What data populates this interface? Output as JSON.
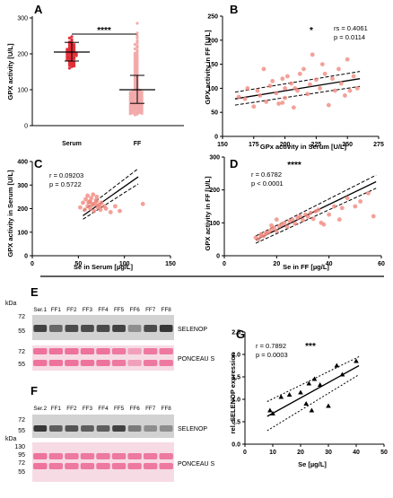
{
  "panels": {
    "A": {
      "letter": "A",
      "ylabel": "GPX activity [U/L]",
      "categories": [
        "Serum",
        "FF"
      ],
      "yticks": [
        "0",
        "100",
        "200",
        "300"
      ],
      "ylim": [
        0,
        300
      ],
      "significance": "****",
      "colors": {
        "serum": "#e0202a",
        "ff": "#f2a3a3"
      }
    },
    "B": {
      "letter": "B",
      "ylabel": "GPX activity in FF [U/L]",
      "xlabel": "GPx activity in Serum [U/L]",
      "xticks": [
        "150",
        "175",
        "200",
        "225",
        "250",
        "275"
      ],
      "yticks": [
        "0",
        "50",
        "100",
        "150",
        "200",
        "250"
      ],
      "xlim": [
        150,
        275
      ],
      "ylim": [
        0,
        250
      ],
      "stat1": "rs = 0.4061",
      "stat2": "p = 0.0114",
      "significance": "*"
    },
    "C": {
      "letter": "C",
      "ylabel": "GPX activity in Serum [U/L]",
      "xlabel": "Se in Serum [µg/L]",
      "xticks": [
        "0",
        "50",
        "100",
        "150"
      ],
      "yticks": [
        "0",
        "100",
        "200",
        "300",
        "400"
      ],
      "xlim": [
        0,
        150
      ],
      "ylim": [
        0,
        400
      ],
      "stat1": "r = 0.09203",
      "stat2": "p = 0.5722"
    },
    "D": {
      "letter": "D",
      "ylabel": "GPX activity in FF [U/L]",
      "xlabel": "Se in FF [µg/L]",
      "xticks": [
        "0",
        "20",
        "40",
        "60"
      ],
      "yticks": [
        "0",
        "100",
        "200",
        "300"
      ],
      "xlim": [
        0,
        60
      ],
      "ylim": [
        0,
        300
      ],
      "stat1": "r = 0.6782",
      "stat2": "p < 0.0001",
      "significance": "****"
    },
    "E": {
      "letter": "E",
      "kda": "kDa",
      "lanes": [
        "Ser.1",
        "FF1",
        "FF2",
        "FF3",
        "FF4",
        "FF5",
        "FF6",
        "FF7",
        "FF8"
      ],
      "upper_markers": [
        "72",
        "55"
      ],
      "lower_markers": [
        "72",
        "55"
      ],
      "label_top": "SELENOP",
      "label_bottom": "PONCEAU S"
    },
    "F": {
      "letter": "F",
      "kda": "kDa",
      "lanes": [
        "Ser.2",
        "FF1",
        "FF2",
        "FF3",
        "FF4",
        "FF5",
        "FF6",
        "FF7",
        "FF8"
      ],
      "upper_markers": [
        "72",
        "55"
      ],
      "lower_markers": [
        "130",
        "95",
        "72",
        "55"
      ],
      "label_top": "SELENOP",
      "label_bottom": "PONCEAU S"
    },
    "G": {
      "letter": "G",
      "ylabel": "rel. SELENOP expression",
      "xlabel": "Se [µg/L]",
      "xticks": [
        "0",
        "10",
        "20",
        "30",
        "40",
        "50"
      ],
      "yticks": [
        "0.0",
        "0.5",
        "1.0",
        "1.5",
        "2.0",
        "2.5"
      ],
      "xlim": [
        0,
        50
      ],
      "ylim": [
        0,
        2.5
      ],
      "stat1": "r = 0.7892",
      "stat2": "p = 0.0003",
      "significance": "***"
    }
  },
  "chart_data": [
    {
      "panel": "A",
      "type": "scatter",
      "categories": [
        "Serum",
        "FF"
      ],
      "series": [
        {
          "values": [
            248,
            244,
            240,
            236,
            233,
            230,
            228,
            226,
            224,
            222,
            220,
            218,
            216,
            215,
            213,
            212,
            210,
            209,
            208,
            206,
            205,
            204,
            202,
            201,
            200,
            199,
            198,
            196,
            195,
            194,
            192,
            191,
            190,
            188,
            187,
            186,
            184,
            182,
            180,
            178,
            176,
            174,
            172,
            170,
            168,
            166,
            164,
            160
          ]
        },
        {
          "values": [
            285,
            258,
            250,
            244,
            236,
            230,
            226,
            222,
            218,
            214,
            210,
            206,
            202,
            199,
            196,
            193,
            190,
            187,
            184,
            181,
            178,
            175,
            172,
            169,
            166,
            163,
            160,
            157,
            154,
            151,
            148,
            145,
            142,
            139,
            136,
            133,
            130,
            127,
            124,
            121,
            118,
            115,
            112,
            109,
            106,
            103,
            100,
            99,
            98,
            97,
            96,
            95,
            94,
            93,
            92,
            91,
            90,
            89,
            88,
            87,
            86,
            85,
            84,
            83,
            82,
            81,
            80,
            79,
            78,
            77,
            76,
            75,
            74,
            73,
            72,
            71,
            70,
            69,
            68,
            67,
            66,
            65,
            64,
            63,
            62,
            61,
            60,
            59,
            58,
            57,
            56,
            55,
            54,
            53,
            52,
            51,
            50,
            49,
            48,
            47,
            46,
            45,
            44,
            43,
            42,
            41,
            40,
            39,
            38,
            37,
            36,
            35,
            34,
            33,
            32,
            30
          ]
        }
      ],
      "summary": [
        {
          "mean": 205,
          "sd_low": 180,
          "sd_high": 232
        },
        {
          "mean": 100,
          "sd_low": 62,
          "sd_high": 140
        }
      ],
      "ylim": [
        0,
        300
      ]
    },
    {
      "panel": "B",
      "type": "scatter",
      "x": [
        163,
        168,
        170,
        175,
        178,
        180,
        183,
        185,
        188,
        190,
        193,
        195,
        198,
        200,
        200,
        202,
        205,
        207,
        210,
        212,
        215,
        218,
        220,
        222,
        225,
        228,
        230,
        232,
        235,
        238,
        240,
        243,
        245,
        248,
        250,
        252,
        255,
        258,
        198,
        208
      ],
      "y": [
        82,
        78,
        100,
        62,
        95,
        85,
        140,
        72,
        105,
        115,
        90,
        68,
        120,
        100,
        80,
        125,
        110,
        60,
        95,
        130,
        140,
        88,
        108,
        170,
        118,
        100,
        150,
        130,
        65,
        120,
        95,
        140,
        110,
        85,
        160,
        95,
        125,
        100,
        70,
        100
      ],
      "fit": {
        "x": [
          160,
          260
        ],
        "y": [
          78,
          120
        ],
        "ci_upper": [
          92,
          135
        ],
        "ci_lower": [
          65,
          104
        ]
      },
      "xlim": [
        150,
        275
      ],
      "ylim": [
        0,
        250
      ]
    },
    {
      "panel": "C",
      "type": "scatter",
      "x": [
        52,
        55,
        57,
        58,
        60,
        60,
        62,
        63,
        64,
        65,
        66,
        67,
        68,
        69,
        70,
        71,
        72,
        74,
        75,
        78,
        80,
        85,
        90,
        95,
        120,
        63,
        66,
        70,
        73,
        61
      ],
      "y": [
        205,
        225,
        195,
        240,
        210,
        255,
        230,
        200,
        245,
        215,
        260,
        190,
        220,
        235,
        250,
        205,
        215,
        195,
        225,
        210,
        200,
        185,
        210,
        190,
        220,
        230,
        218,
        232,
        212,
        226
      ],
      "fit": {
        "x": [
          55,
          115
        ],
        "y": [
          170,
          335
        ],
        "ci_upper": [
          190,
          370
        ],
        "ci_lower": [
          155,
          305
        ]
      },
      "xlim": [
        0,
        150
      ],
      "ylim": [
        0,
        400
      ]
    },
    {
      "panel": "D",
      "type": "scatter",
      "x": [
        12,
        13,
        14,
        15,
        16,
        17,
        18,
        19,
        20,
        21,
        22,
        23,
        24,
        25,
        26,
        27,
        28,
        29,
        30,
        31,
        32,
        33,
        34,
        35,
        36,
        37,
        38,
        40,
        42,
        44,
        45,
        47,
        50,
        52,
        55,
        57,
        14,
        16,
        18,
        20
      ],
      "y": [
        55,
        50,
        65,
        60,
        70,
        72,
        80,
        85,
        75,
        90,
        95,
        100,
        88,
        105,
        110,
        98,
        115,
        120,
        108,
        125,
        118,
        130,
        112,
        135,
        140,
        100,
        95,
        125,
        150,
        110,
        145,
        175,
        150,
        165,
        190,
        120,
        60,
        68,
        92,
        110
      ],
      "fit": {
        "x": [
          12,
          58
        ],
        "y": [
          48,
          225
        ],
        "ci_upper": [
          60,
          245
        ],
        "ci_lower": [
          38,
          205
        ]
      },
      "xlim": [
        0,
        60
      ],
      "ylim": [
        0,
        300
      ]
    },
    {
      "panel": "G",
      "type": "scatter",
      "x": [
        9,
        10,
        13,
        16,
        20,
        22,
        23,
        24,
        25,
        27,
        30,
        33,
        35,
        40
      ],
      "y": [
        0.75,
        0.68,
        1.05,
        1.1,
        1.15,
        0.9,
        1.35,
        0.75,
        1.45,
        1.32,
        0.85,
        1.75,
        1.55,
        1.85
      ],
      "fit": {
        "x": [
          8,
          41
        ],
        "y": [
          0.62,
          1.75
        ],
        "ci_upper": [
          0.95,
          1.95
        ],
        "ci_lower": [
          0.3,
          1.55
        ]
      },
      "xlim": [
        0,
        50
      ],
      "ylim": [
        0,
        2.5
      ]
    }
  ],
  "blots": {
    "E": {
      "selenop_intensity": [
        0.75,
        0.55,
        0.7,
        0.7,
        0.7,
        0.75,
        0.35,
        0.7,
        0.8
      ],
      "ponceau_intensity": [
        0.9,
        0.9,
        0.9,
        0.9,
        0.9,
        0.85,
        0.5,
        0.85,
        0.85
      ]
    },
    "F": {
      "selenop_intensity": [
        0.8,
        0.6,
        0.65,
        0.6,
        0.6,
        0.75,
        0.45,
        0.35,
        0.35
      ],
      "ponceau_intensity": [
        0.9,
        0.85,
        0.85,
        0.85,
        0.85,
        0.85,
        0.85,
        0.85,
        0.85
      ]
    }
  },
  "colors": {
    "point": "#f08a80",
    "point_dark": "#e0202a",
    "line": "#000000",
    "band": "#d23"
  }
}
